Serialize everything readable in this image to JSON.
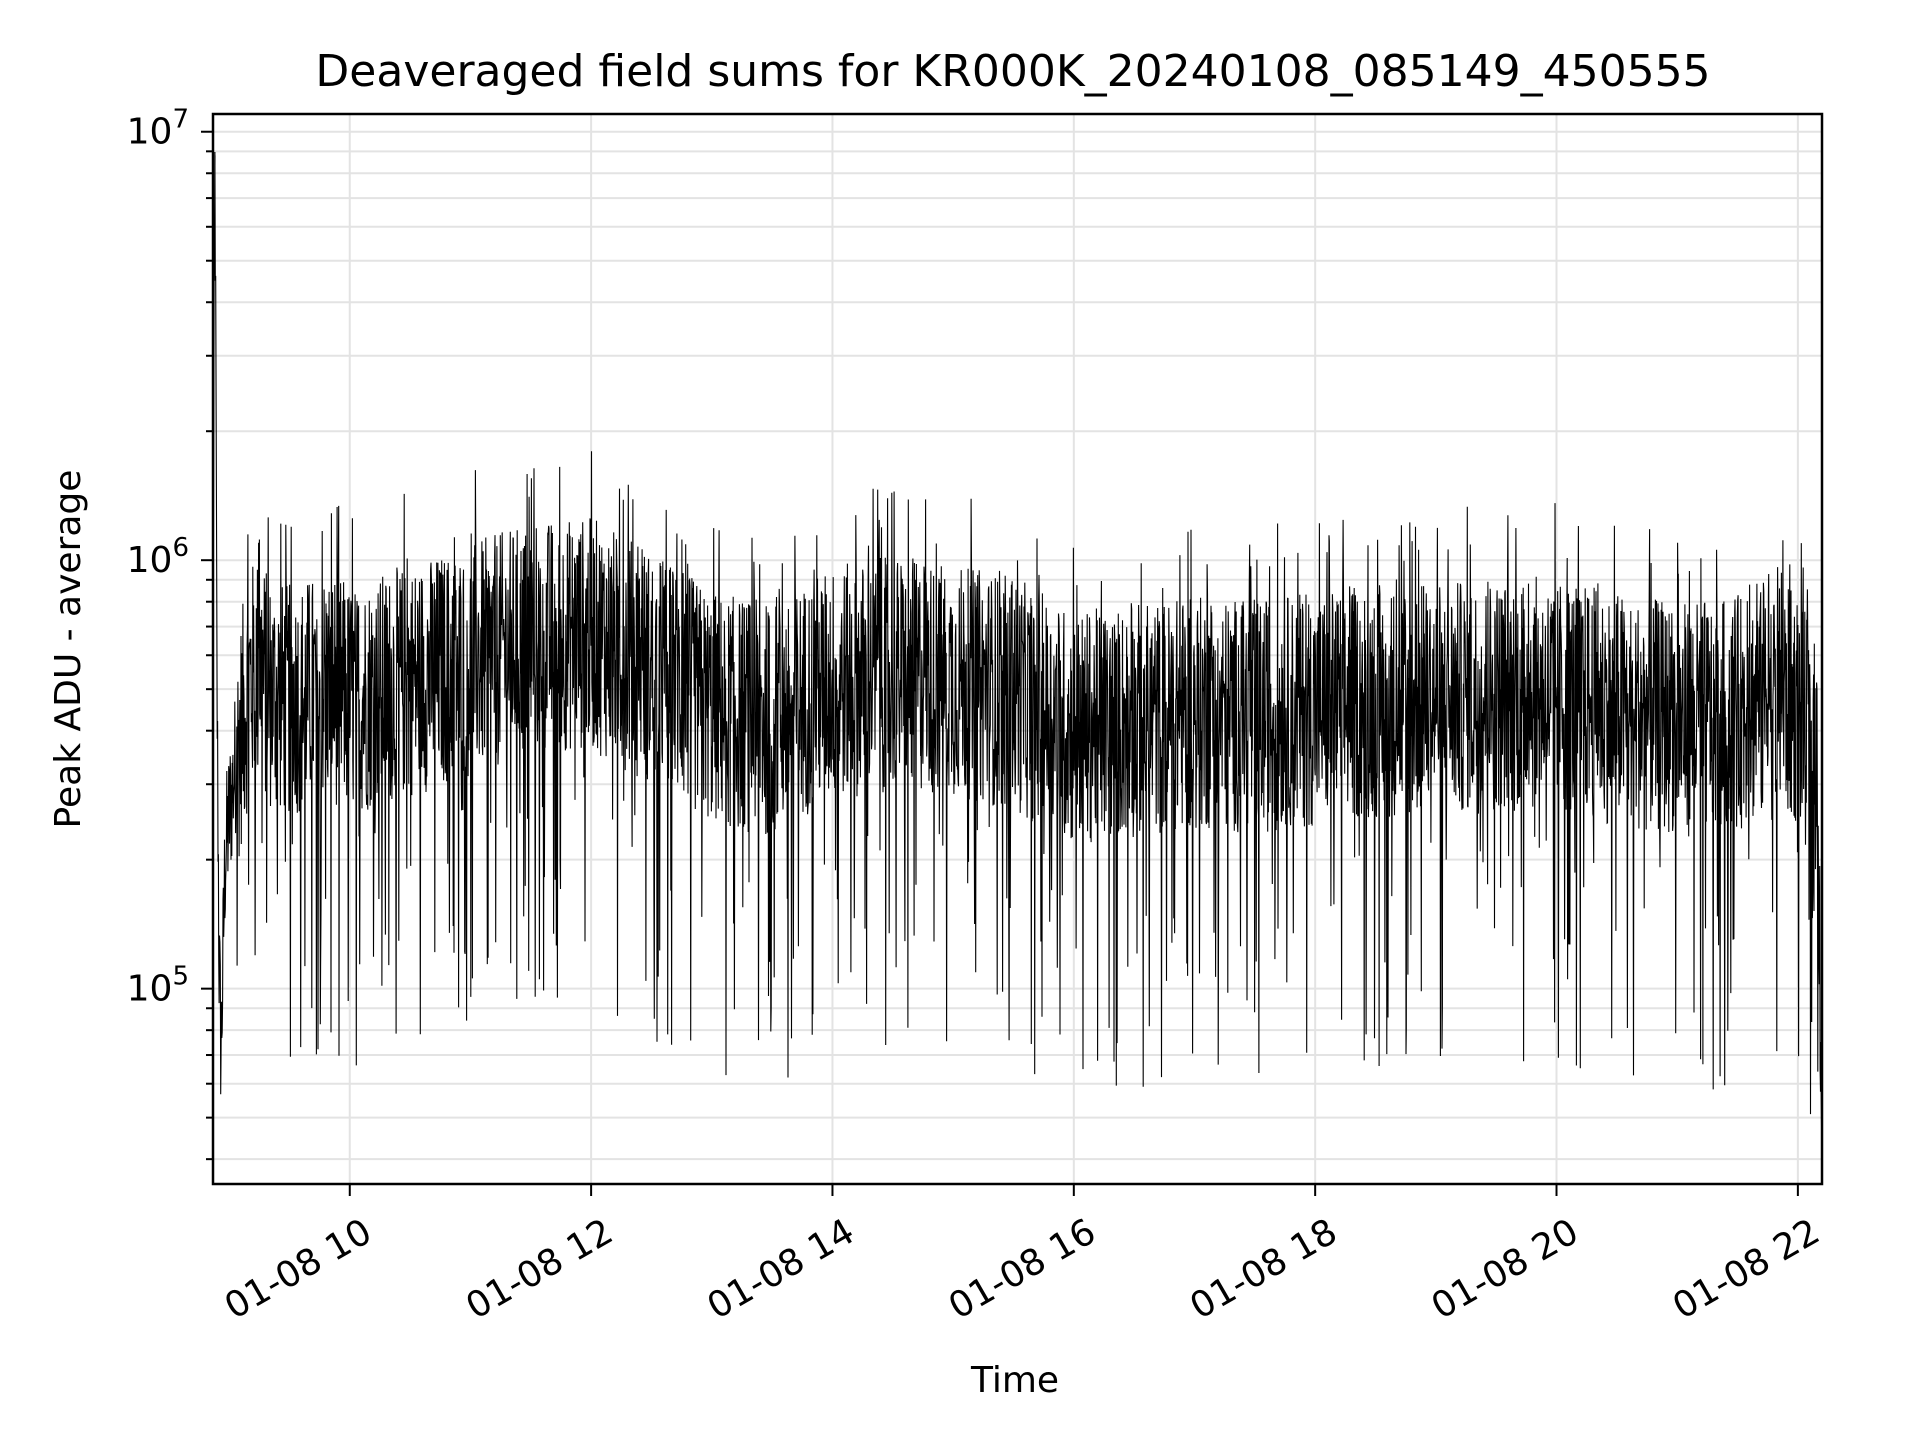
{
  "chart_data": {
    "type": "line",
    "title": "Deaveraged field sums for KR000K_20240108_085149_450555",
    "xlabel": "Time",
    "ylabel": "Peak ADU - average",
    "y_scale": "log",
    "grid": true,
    "grid_minor_y": true,
    "x_range": [
      "2024-01-08 08:52",
      "2024-01-08 22:12"
    ],
    "ylim": [
      35000,
      11000000
    ],
    "x_tick_labels": [
      "01-08 10",
      "01-08 12",
      "01-08 14",
      "01-08 16",
      "01-08 18",
      "01-08 20",
      "01-08 22"
    ],
    "x_tick_times": [
      "2024-01-08 10:00",
      "2024-01-08 12:00",
      "2024-01-08 14:00",
      "2024-01-08 16:00",
      "2024-01-08 18:00",
      "2024-01-08 20:00",
      "2024-01-08 22:00"
    ],
    "y_tick_labels": [
      {
        "base": "10",
        "exp": "5",
        "value": 100000
      },
      {
        "base": "10",
        "exp": "6",
        "value": 1000000
      },
      {
        "base": "10",
        "exp": "7",
        "value": 10000000
      }
    ],
    "series_color": "#000000",
    "series": [
      {
        "x": [
          "2024-01-08 08:52",
          "2024-01-08 08:53",
          "2024-01-08 08:54",
          "2024-01-08 08:55",
          "2024-01-08 08:56",
          "2024-01-08 08:58",
          "2024-01-08 09:00",
          "2024-01-08 09:05",
          "2024-01-08 09:10",
          "2024-01-08 09:15",
          "2024-01-08 09:20",
          "2024-01-08 09:30",
          "2024-01-08 09:40",
          "2024-01-08 09:50",
          "2024-01-08 10:00",
          "2024-01-08 10:30",
          "2024-01-08 11:00",
          "2024-01-08 11:30",
          "2024-01-08 12:00",
          "2024-01-08 12:30",
          "2024-01-08 13:00",
          "2024-01-08 13:30",
          "2024-01-08 13:50",
          "2024-01-08 14:00",
          "2024-01-08 14:30",
          "2024-01-08 15:00",
          "2024-01-08 15:30",
          "2024-01-08 16:00",
          "2024-01-08 16:30",
          "2024-01-08 17:00",
          "2024-01-08 17:30",
          "2024-01-08 18:00",
          "2024-01-08 18:30",
          "2024-01-08 19:00",
          "2024-01-08 19:30",
          "2024-01-08 20:00",
          "2024-01-08 20:30",
          "2024-01-08 21:00",
          "2024-01-08 21:30",
          "2024-01-08 21:50",
          "2024-01-08 22:00",
          "2024-01-08 22:10",
          "2024-01-08 22:12"
        ],
        "y": [
          700000,
          8800000,
          500000,
          120000,
          70000,
          200000,
          250000,
          400000,
          550000,
          600000,
          520000,
          500000,
          520000,
          550000,
          500000,
          560000,
          620000,
          700000,
          720000,
          600000,
          480000,
          450000,
          520000,
          550000,
          580000,
          560000,
          520000,
          430000,
          450000,
          470000,
          460000,
          480000,
          500000,
          500000,
          520000,
          520000,
          480000,
          450000,
          470000,
          500000,
          480000,
          350000,
          45000
        ]
      }
    ]
  }
}
